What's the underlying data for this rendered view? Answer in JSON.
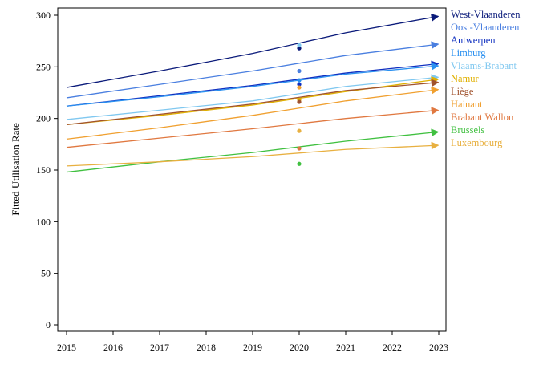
{
  "chart_data": {
    "type": "line",
    "title": "",
    "xlabel": "",
    "ylabel": "Fitted Utilisation Rate",
    "xlim": [
      2015,
      2023
    ],
    "ylim": [
      0,
      300
    ],
    "x_ticks": [
      "2015",
      "2016",
      "2017",
      "2018",
      "2019",
      "2020",
      "2021",
      "2022",
      "2023"
    ],
    "y_ticks": [
      "0",
      "50",
      "100",
      "150",
      "200",
      "250",
      "300"
    ],
    "grid": false,
    "legend": "right",
    "series": [
      {
        "name": "West-Vlaanderen",
        "color": "#0a1a7a",
        "x": [
          2015,
          2017,
          2019,
          2021,
          2023
        ],
        "y": [
          230,
          246,
          263,
          283,
          299
        ],
        "observed_2020": 268
      },
      {
        "name": "Oost-Vlaanderen",
        "color": "#4a7fe0",
        "x": [
          2015,
          2017,
          2019,
          2021,
          2023
        ],
        "y": [
          220,
          233,
          246,
          261,
          272
        ],
        "observed_2020": 246
      },
      {
        "name": "Antwerpen",
        "color": "#1030c0",
        "x": [
          2015,
          2017,
          2019,
          2021,
          2023
        ],
        "y": [
          212,
          222,
          232,
          244,
          253
        ],
        "observed_2020": 233
      },
      {
        "name": "Limburg",
        "color": "#2a90f0",
        "x": [
          2015,
          2017,
          2019,
          2021,
          2023
        ],
        "y": [
          212,
          221,
          231,
          243,
          251
        ],
        "observed_2020": 237
      },
      {
        "name": "Vlaams-Brabant",
        "color": "#80c8f0",
        "x": [
          2015,
          2017,
          2019,
          2021,
          2023
        ],
        "y": [
          199,
          208,
          217,
          231,
          240
        ],
        "observed_2020": 271
      },
      {
        "name": "Namur",
        "color": "#e0b000",
        "x": [
          2015,
          2017,
          2019,
          2021,
          2023
        ],
        "y": [
          194,
          203,
          213,
          226,
          238
        ],
        "observed_2020": 218
      },
      {
        "name": "Liège",
        "color": "#a0522d",
        "x": [
          2015,
          2017,
          2019,
          2021,
          2023
        ],
        "y": [
          194,
          204,
          214,
          227,
          235
        ],
        "observed_2020": 216
      },
      {
        "name": "Hainaut",
        "color": "#f0a030",
        "x": [
          2015,
          2017,
          2019,
          2021,
          2023
        ],
        "y": [
          180,
          191,
          203,
          217,
          228
        ],
        "observed_2020": 230
      },
      {
        "name": "Brabant Wallon",
        "color": "#e07840",
        "x": [
          2015,
          2017,
          2019,
          2021,
          2023
        ],
        "y": [
          172,
          181,
          190,
          200,
          208
        ],
        "observed_2020": 171
      },
      {
        "name": "Brussels",
        "color": "#40c040",
        "x": [
          2015,
          2017,
          2019,
          2021,
          2023
        ],
        "y": [
          148,
          158,
          167,
          178,
          187
        ],
        "observed_2020": 156
      },
      {
        "name": "Luxembourg",
        "color": "#e8b040",
        "x": [
          2015,
          2017,
          2019,
          2021,
          2023
        ],
        "y": [
          154,
          158,
          163,
          170,
          174
        ],
        "observed_2020": 188
      }
    ]
  }
}
